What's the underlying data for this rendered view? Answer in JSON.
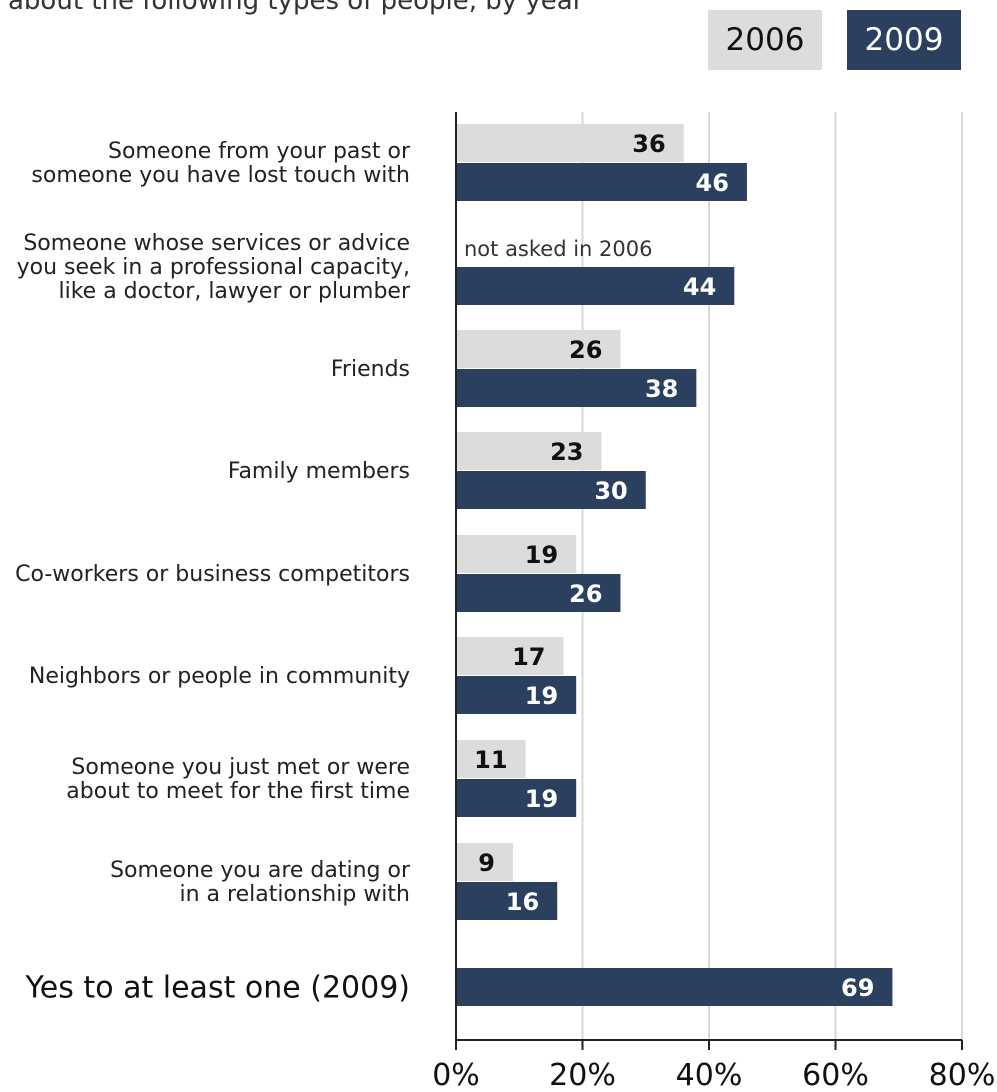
{
  "title": "about the following types of people, by year",
  "legend": [
    {
      "label": "2006",
      "color": "#dcdcdc",
      "text_color": "#111111"
    },
    {
      "label": "2009",
      "color": "#2a405e",
      "text_color": "#ffffff"
    }
  ],
  "chart_data": {
    "type": "bar",
    "orientation": "horizontal",
    "categories": [
      "Someone from your past or\nsomeone you have lost touch with",
      "Someone whose services or advice\nyou seek in a professional capacity,\nlike a doctor, lawyer or plumber",
      "Friends",
      "Family members",
      "Co-workers or business competitors",
      "Neighbors or people in community",
      "Someone you just met or were\nabout to meet for the first time",
      "Someone you are dating or\nin a relationship with",
      "Yes to at least one (2009)"
    ],
    "series": [
      {
        "name": "2006",
        "values": [
          36,
          null,
          26,
          23,
          19,
          17,
          11,
          9,
          null
        ]
      },
      {
        "name": "2009",
        "values": [
          46,
          44,
          38,
          30,
          26,
          19,
          19,
          16,
          69
        ]
      }
    ],
    "annotations": [
      {
        "category_index": 1,
        "series": "2006",
        "text": "not asked in 2006"
      }
    ],
    "xlim": [
      0,
      80
    ],
    "xticks": [
      "0%",
      "20%",
      "40%",
      "60%",
      "80%"
    ],
    "grid": true,
    "legend_position": "top-right"
  }
}
